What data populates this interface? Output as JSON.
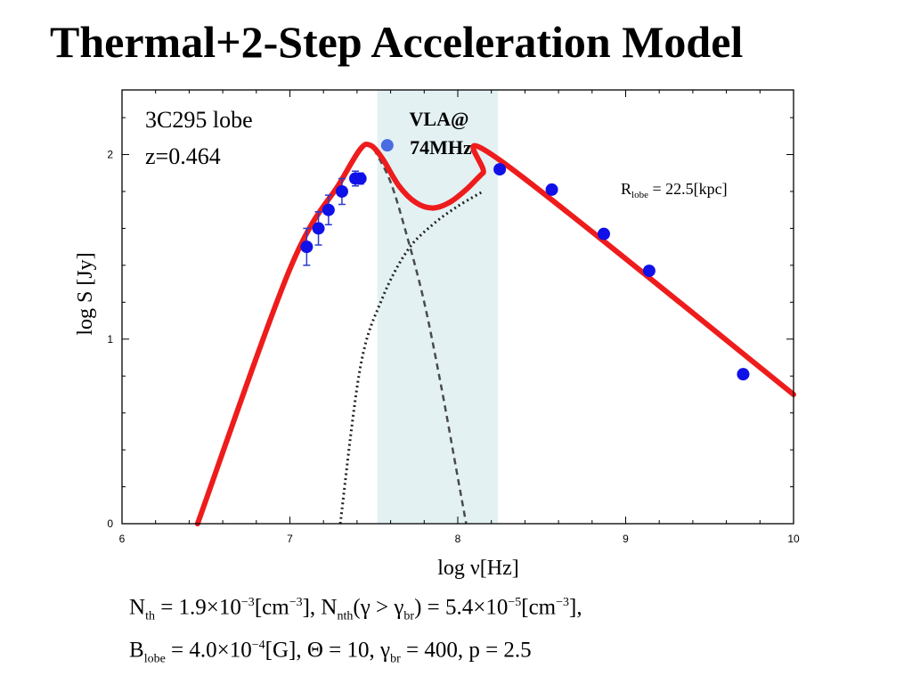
{
  "title": "Thermal+2-Step Acceleration Model",
  "chart_data": {
    "type": "line",
    "xlabel": "log ν[Hz]",
    "ylabel": "log S [Jy]",
    "xlim": [
      6,
      10
    ],
    "ylim": [
      0,
      2.35
    ],
    "xticks": [
      "6",
      "7",
      "8",
      "9",
      "10"
    ],
    "yticks": [
      "0",
      "1",
      "2"
    ],
    "grid": false,
    "annotations": {
      "source": "3C295 lobe",
      "redshift": "z=0.464",
      "band_label_1": "VLA@",
      "band_label_2": "74MHz",
      "radius_label": "R",
      "radius_sub": "lobe",
      "radius_value": " = 22.5[kpc]"
    },
    "highlight_band": {
      "x": [
        7.52,
        8.24
      ],
      "color": "#e3f1f3"
    },
    "series": [
      {
        "style": "solid-red",
        "color": "#ee1c1c",
        "x": [
          6.45,
          7.0,
          7.3,
          7.42,
          7.48,
          7.55,
          7.65,
          7.75,
          7.85,
          7.95,
          8.05,
          8.15,
          8.25,
          10.0
        ],
        "y": [
          0.0,
          1.38,
          1.85,
          2.03,
          2.05,
          1.98,
          1.83,
          1.74,
          1.71,
          1.74,
          1.81,
          1.9,
          1.97,
          0.7
        ]
      },
      {
        "style": "dashed",
        "color": "#4a4a4a",
        "x": [
          7.5,
          7.6,
          7.7,
          7.8,
          7.9,
          8.0,
          8.05
        ],
        "y": [
          2.03,
          1.85,
          1.55,
          1.2,
          0.75,
          0.25,
          0.0
        ]
      },
      {
        "style": "dotted",
        "color": "#222222",
        "x": [
          7.3,
          7.42,
          7.55,
          7.7,
          7.85,
          8.0,
          8.15
        ],
        "y": [
          0.0,
          0.85,
          1.22,
          1.48,
          1.62,
          1.72,
          1.8
        ]
      }
    ],
    "points": [
      {
        "x": 7.1,
        "y": 1.5,
        "err": 0.1
      },
      {
        "x": 7.17,
        "y": 1.6,
        "err": 0.09
      },
      {
        "x": 7.23,
        "y": 1.7,
        "err": 0.08
      },
      {
        "x": 7.31,
        "y": 1.8,
        "err": 0.07
      },
      {
        "x": 7.39,
        "y": 1.87,
        "err": 0.04
      },
      {
        "x": 7.42,
        "y": 1.87,
        "err": 0.03
      },
      {
        "x": 7.58,
        "y": 2.05,
        "err": 0,
        "highlight": true
      },
      {
        "x": 8.25,
        "y": 1.92,
        "err": 0
      },
      {
        "x": 8.56,
        "y": 1.81,
        "err": 0
      },
      {
        "x": 8.87,
        "y": 1.57,
        "err": 0
      },
      {
        "x": 9.14,
        "y": 1.37,
        "err": 0
      },
      {
        "x": 9.7,
        "y": 0.81,
        "err": 0
      }
    ],
    "point_color": "#1010e8",
    "highlight_point_color": "#4a6ce0",
    "errorbar_color": "#2a3ad0"
  },
  "formula": {
    "l1_a": "N",
    "l1_a_sub": "th",
    "l1_b": " = 1.9×10",
    "l1_b_sup": "−3",
    "l1_c": "[cm",
    "l1_c_sup": "−3",
    "l1_d": "], N",
    "l1_d_sub": "nth",
    "l1_e": "(γ > γ",
    "l1_e_sub": "br",
    "l1_f": ") = 5.4×10",
    "l1_f_sup": "−5",
    "l1_g": "[cm",
    "l1_g_sup": "−3",
    "l1_h": "],",
    "l2_a": "B",
    "l2_a_sub": "lobe",
    "l2_b": " = 4.0×10",
    "l2_b_sup": "−4",
    "l2_c": "[G], Θ = 10, γ",
    "l2_c_sub": "br",
    "l2_d": " = 400, p = 2.5"
  }
}
